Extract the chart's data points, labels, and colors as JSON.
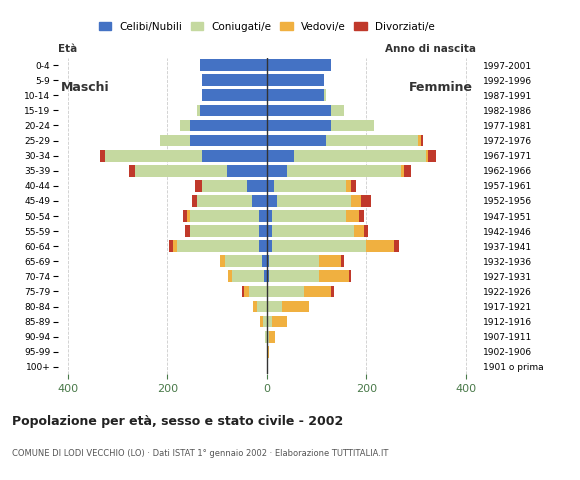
{
  "age_groups": [
    "100+",
    "95-99",
    "90-94",
    "85-89",
    "80-84",
    "75-79",
    "70-74",
    "65-69",
    "60-64",
    "55-59",
    "50-54",
    "45-49",
    "40-44",
    "35-39",
    "30-34",
    "25-29",
    "20-24",
    "15-19",
    "10-14",
    "5-9",
    "0-4"
  ],
  "birth_years": [
    "1901 o prima",
    "1902-1906",
    "1907-1911",
    "1912-1916",
    "1917-1921",
    "1922-1926",
    "1927-1931",
    "1932-1936",
    "1937-1941",
    "1942-1946",
    "1947-1951",
    "1952-1956",
    "1957-1961",
    "1962-1966",
    "1967-1971",
    "1972-1976",
    "1977-1981",
    "1982-1986",
    "1987-1991",
    "1992-1996",
    "1997-2001"
  ],
  "male": {
    "celibi": [
      0,
      0,
      0,
      0,
      0,
      0,
      5,
      10,
      15,
      15,
      15,
      30,
      40,
      80,
      130,
      155,
      155,
      135,
      130,
      130,
      135
    ],
    "coniugati": [
      0,
      0,
      3,
      8,
      20,
      35,
      65,
      75,
      165,
      140,
      140,
      110,
      90,
      185,
      195,
      60,
      20,
      5,
      0,
      0,
      0
    ],
    "vedovi": [
      0,
      0,
      0,
      5,
      8,
      10,
      8,
      10,
      8,
      0,
      5,
      0,
      0,
      0,
      0,
      0,
      0,
      0,
      0,
      0,
      0
    ],
    "divorziati": [
      0,
      0,
      0,
      0,
      0,
      5,
      0,
      0,
      8,
      10,
      8,
      10,
      15,
      12,
      10,
      0,
      0,
      0,
      0,
      0,
      0
    ]
  },
  "female": {
    "celibi": [
      0,
      0,
      0,
      0,
      0,
      0,
      5,
      5,
      10,
      10,
      10,
      20,
      15,
      40,
      55,
      120,
      130,
      130,
      115,
      115,
      130
    ],
    "coniugati": [
      0,
      0,
      5,
      10,
      30,
      75,
      100,
      100,
      190,
      165,
      150,
      150,
      145,
      230,
      265,
      185,
      85,
      25,
      5,
      0,
      0
    ],
    "vedovi": [
      3,
      5,
      12,
      30,
      55,
      55,
      60,
      45,
      55,
      20,
      25,
      20,
      10,
      5,
      5,
      5,
      0,
      0,
      0,
      0,
      0
    ],
    "divorziati": [
      0,
      0,
      0,
      0,
      0,
      5,
      5,
      5,
      10,
      8,
      10,
      20,
      10,
      15,
      15,
      5,
      0,
      0,
      0,
      0,
      0
    ]
  },
  "colors": {
    "celibi": "#4472c4",
    "coniugati": "#c5d9a0",
    "vedovi": "#f0b040",
    "divorziati": "#c0392b"
  },
  "xlim": 420,
  "title": "Popolazione per età, sesso e stato civile - 2002",
  "subtitle": "COMUNE DI LODI VECCHIO (LO) · Dati ISTAT 1° gennaio 2002 · Elaborazione TUTTITALIA.IT",
  "ylabel_left": "Età",
  "ylabel_right": "Anno di nascita",
  "legend_labels": [
    "Celibi/Nubili",
    "Coniugati/e",
    "Vedovi/e",
    "Divorziati/e"
  ],
  "label_maschi": "Maschi",
  "label_femmine": "Femmine",
  "background_color": "#ffffff",
  "plot_bg_color": "#ffffff",
  "grid_color": "#cccccc",
  "xtick_color": "#4a7a4a"
}
